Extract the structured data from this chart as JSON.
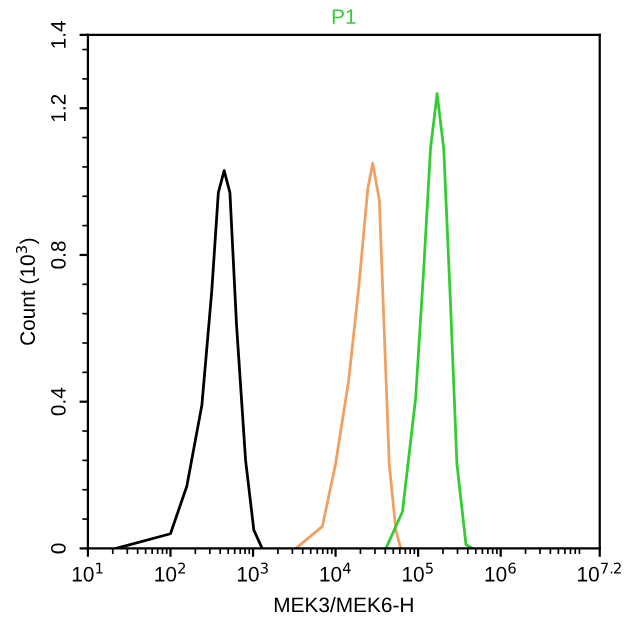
{
  "chart_data": {
    "type": "line",
    "title": "P1",
    "xlabel": "MEK3/MEK6-H",
    "ylabel": "Count (10$^{3}$)",
    "log": "x",
    "grid": false,
    "legend": false,
    "marker": "none",
    "line_style": "solid",
    "xlim": [
      10,
      15848932
    ],
    "ylim": [
      0,
      1.4
    ],
    "xticks": [
      {
        "value": 10,
        "label": "10$^{1}$"
      },
      {
        "value": 100,
        "label": "10$^{2}$"
      },
      {
        "value": 1000,
        "label": "10$^{3}$"
      },
      {
        "value": 10000,
        "label": "10$^{4}$"
      },
      {
        "value": 100000,
        "label": "10$^{5}$"
      },
      {
        "value": 1000000,
        "label": "10$^{6}$"
      },
      {
        "value": 15848932,
        "label": "10$^{7.2}$"
      }
    ],
    "yticks": [
      0,
      0.4,
      0.8,
      1.2,
      1.4
    ],
    "series": [
      {
        "color": "#000000",
        "x": [
          22,
          100,
          158,
          240,
          316,
          380,
          447,
          525,
          631,
          813,
          1023,
          1290
        ],
        "values": [
          0,
          0.04,
          0.17,
          0.39,
          0.7,
          0.97,
          1.03,
          0.97,
          0.61,
          0.24,
          0.05,
          0
        ]
      },
      {
        "color": "#f0a060",
        "x": [
          3311,
          6918,
          10000,
          14454,
          19055,
          24547,
          28184,
          33884,
          38905,
          44668,
          53703,
          61660
        ],
        "values": [
          0,
          0.06,
          0.23,
          0.46,
          0.71,
          0.98,
          1.05,
          0.95,
          0.59,
          0.23,
          0.05,
          0
        ]
      },
      {
        "color": "#33cc33",
        "x": [
          40738,
          64565,
          93325,
          117490,
          141254,
          169824,
          204174,
          245471,
          295121,
          380189,
          457088
        ],
        "values": [
          0,
          0.1,
          0.41,
          0.77,
          1.09,
          1.24,
          1.09,
          0.68,
          0.23,
          0.01,
          0
        ]
      }
    ]
  }
}
